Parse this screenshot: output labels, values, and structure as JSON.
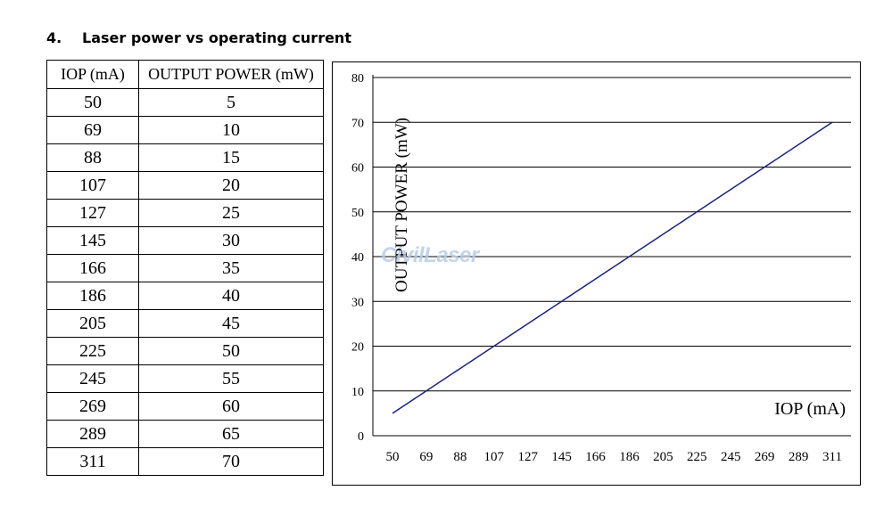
{
  "heading": {
    "number": "4.",
    "text": "Laser power vs operating current"
  },
  "table": {
    "headers": [
      "IOP (mA)",
      "OUTPUT  POWER (mW)"
    ],
    "rows": [
      [
        "50",
        "5"
      ],
      [
        "69",
        "10"
      ],
      [
        "88",
        "15"
      ],
      [
        "107",
        "20"
      ],
      [
        "127",
        "25"
      ],
      [
        "145",
        "30"
      ],
      [
        "166",
        "35"
      ],
      [
        "186",
        "40"
      ],
      [
        "205",
        "45"
      ],
      [
        "225",
        "50"
      ],
      [
        "245",
        "55"
      ],
      [
        "269",
        "60"
      ],
      [
        "289",
        "65"
      ],
      [
        "311",
        "70"
      ]
    ]
  },
  "watermark": "CivilLaser",
  "chart_data": {
    "type": "line",
    "xlabel": "IOP (mA)",
    "ylabel": "OUTPUT  POWER (mW)",
    "x_ticks": [
      "50",
      "69",
      "88",
      "107",
      "127",
      "145",
      "166",
      "186",
      "205",
      "225",
      "245",
      "269",
      "289",
      "311"
    ],
    "y_ticks": [
      "0",
      "10",
      "20",
      "30",
      "40",
      "50",
      "60",
      "70",
      "80"
    ],
    "ylim": [
      0,
      80
    ],
    "grid": "horizontal",
    "line_color": "#1a237e",
    "series": [
      {
        "x": [
          50,
          69,
          88,
          107,
          127,
          145,
          166,
          186,
          205,
          225,
          245,
          269,
          289,
          311
        ],
        "y": [
          5,
          10,
          15,
          20,
          25,
          30,
          35,
          40,
          45,
          50,
          55,
          60,
          65,
          70
        ]
      }
    ]
  }
}
